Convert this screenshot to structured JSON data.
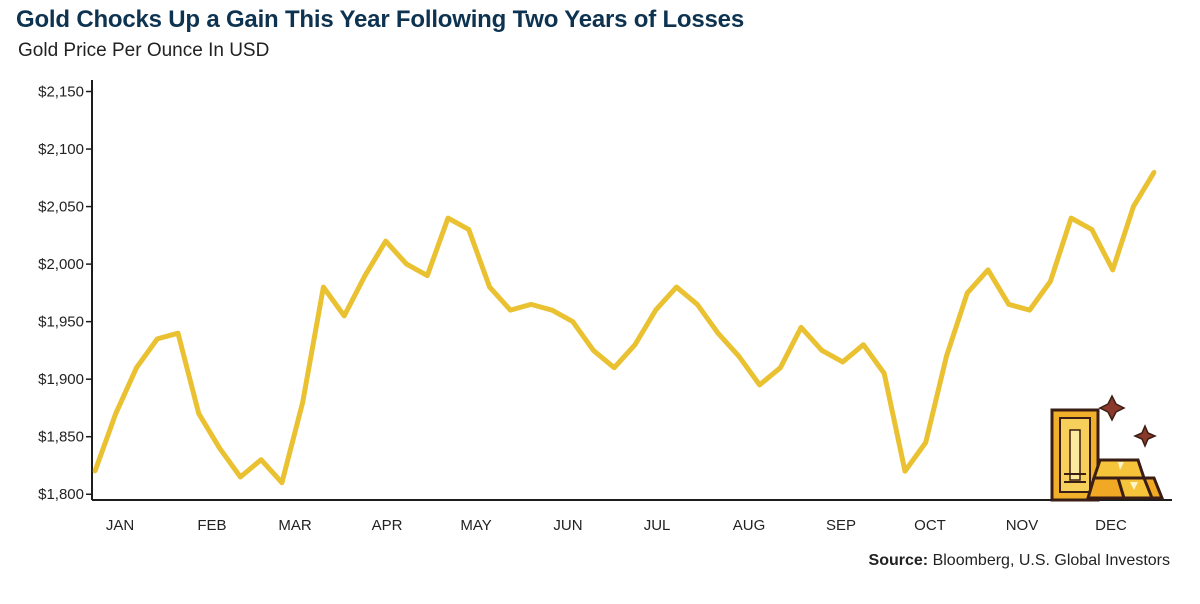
{
  "title": "Gold Chocks Up a Gain This Year Following Two Years of Losses",
  "subtitle": "Gold Price Per Ounce In USD",
  "source_label": "Source:",
  "source_text": "Bloomberg, U.S. Global Investors",
  "colors": {
    "line": "#e9c131",
    "axis": "#1d1d1d",
    "title": "#0d3350"
  },
  "icon": "gold-bars-icon",
  "chart_data": {
    "type": "line",
    "title": "Gold Chocks Up a Gain This Year Following Two Years of Losses",
    "subtitle": "Gold Price Per Ounce In USD",
    "xlabel": "",
    "ylabel": "",
    "x_tick_labels": [
      "JAN",
      "FEB",
      "MAR",
      "APR",
      "MAY",
      "JUN",
      "JUL",
      "AUG",
      "SEP",
      "OCT",
      "NOV",
      "DEC"
    ],
    "y_tick_labels": [
      "$1,800",
      "$1,850",
      "$1,900",
      "$1,950",
      "$2,000",
      "$2,050",
      "$2,100",
      "$2,150"
    ],
    "ylim": [
      1795,
      2160
    ],
    "grid": false,
    "series": [
      {
        "name": "",
        "x": [
          "2023-01-02",
          "2023-01-09",
          "2023-01-16",
          "2023-01-23",
          "2023-01-30",
          "2023-02-06",
          "2023-02-13",
          "2023-02-20",
          "2023-02-27",
          "2023-03-06",
          "2023-03-13",
          "2023-03-20",
          "2023-03-27",
          "2023-04-03",
          "2023-04-10",
          "2023-04-17",
          "2023-04-24",
          "2023-05-01",
          "2023-05-08",
          "2023-05-15",
          "2023-05-22",
          "2023-05-29",
          "2023-06-05",
          "2023-06-12",
          "2023-06-19",
          "2023-06-26",
          "2023-07-03",
          "2023-07-10",
          "2023-07-17",
          "2023-07-24",
          "2023-07-31",
          "2023-08-07",
          "2023-08-14",
          "2023-08-21",
          "2023-08-28",
          "2023-09-04",
          "2023-09-11",
          "2023-09-18",
          "2023-09-25",
          "2023-10-02",
          "2023-10-09",
          "2023-10-16",
          "2023-10-23",
          "2023-10-30",
          "2023-11-06",
          "2023-11-13",
          "2023-11-20",
          "2023-11-27",
          "2023-12-04",
          "2023-12-11",
          "2023-12-18",
          "2023-12-25"
        ],
        "y": [
          1820,
          1870,
          1910,
          1935,
          1940,
          1870,
          1840,
          1815,
          1830,
          1810,
          1880,
          1980,
          1955,
          1990,
          2020,
          2000,
          1990,
          2040,
          2030,
          1980,
          1960,
          1965,
          1960,
          1950,
          1925,
          1910,
          1930,
          1960,
          1980,
          1965,
          1940,
          1920,
          1895,
          1910,
          1945,
          1925,
          1915,
          1930,
          1905,
          1820,
          1845,
          1920,
          1975,
          1995,
          1965,
          1960,
          1985,
          2040,
          2030,
          1995,
          2050,
          2080
        ]
      }
    ]
  }
}
